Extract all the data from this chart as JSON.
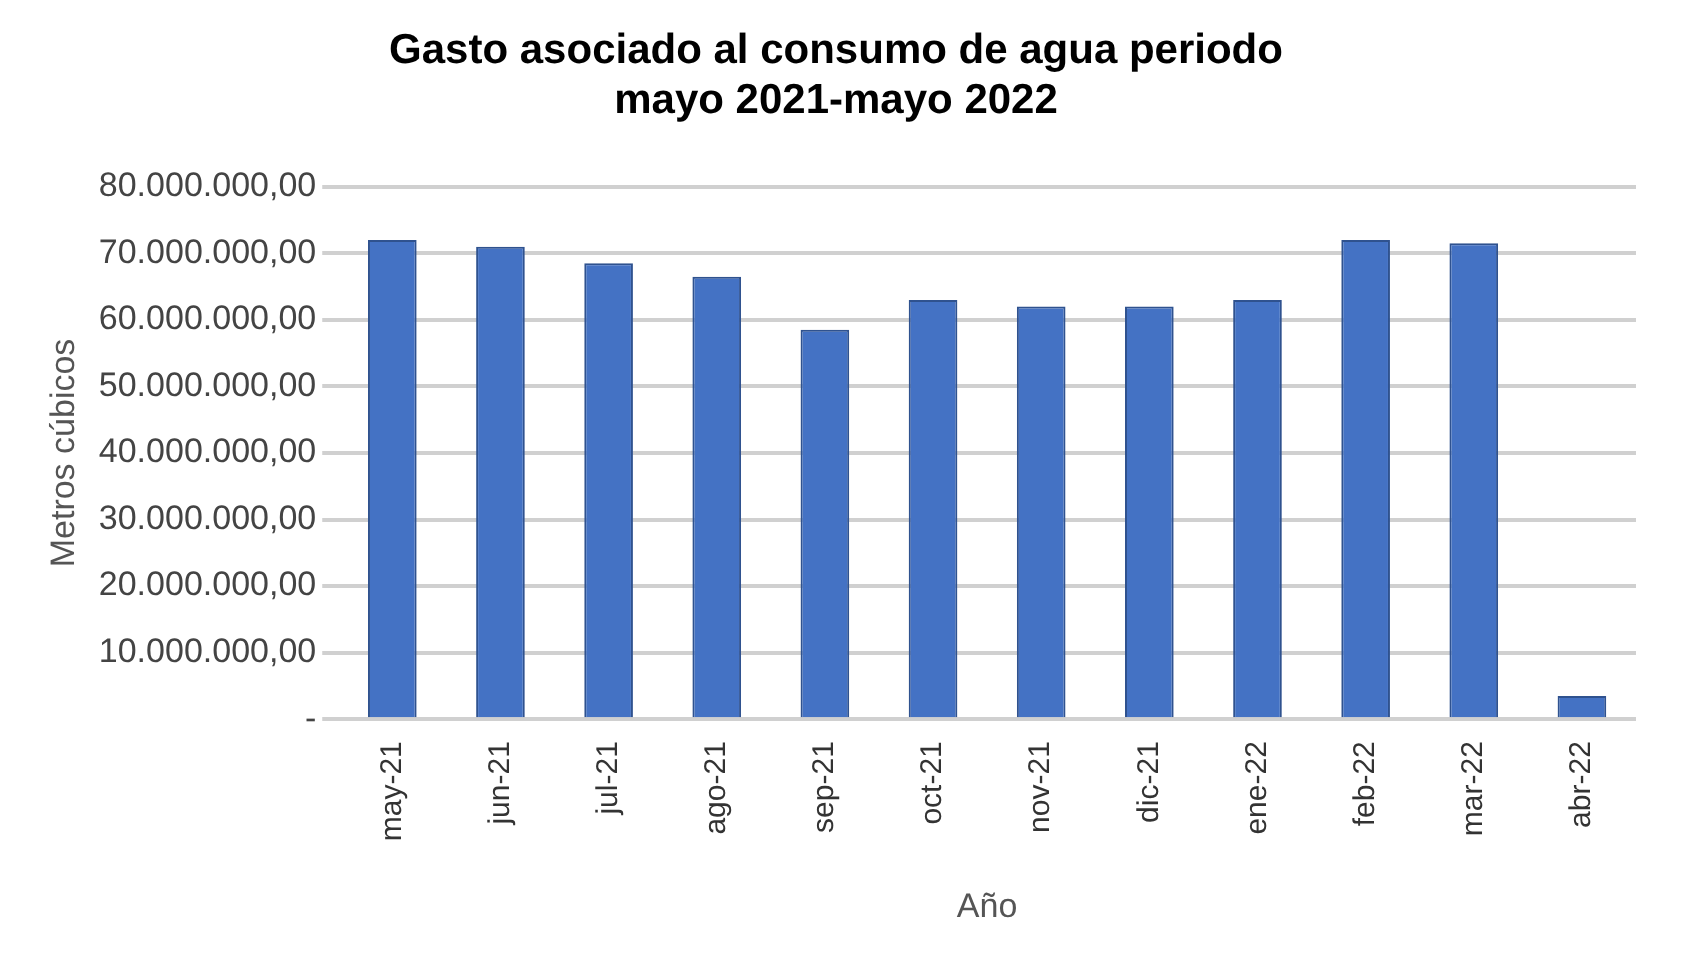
{
  "chart_data": {
    "type": "bar",
    "title": "Gasto asociado al consumo de agua periodo\nmayo 2021-mayo 2022",
    "xlabel": "Año",
    "ylabel": "Metros cúbicos",
    "categories": [
      "may-21",
      "jun-21",
      "jul-21",
      "ago-21",
      "sep-21",
      "oct-21",
      "nov-21",
      "dic-21",
      "ene-22",
      "feb-22",
      "mar-22",
      "abr-22"
    ],
    "values": [
      72000000,
      71000000,
      68500000,
      66500000,
      58500000,
      63000000,
      62000000,
      62000000,
      63000000,
      72000000,
      71500000,
      3500000
    ],
    "color": "#4472c4",
    "ylim": [
      0,
      80000000
    ],
    "yticks": [
      {
        "value": 0,
        "label": "-"
      },
      {
        "value": 10000000,
        "label": "10.000.000,00"
      },
      {
        "value": 20000000,
        "label": "20.000.000,00"
      },
      {
        "value": 30000000,
        "label": "30.000.000,00"
      },
      {
        "value": 40000000,
        "label": "40.000.000,00"
      },
      {
        "value": 50000000,
        "label": "50.000.000,00"
      },
      {
        "value": 60000000,
        "label": "60.000.000,00"
      },
      {
        "value": 70000000,
        "label": "70.000.000,00"
      },
      {
        "value": 80000000,
        "label": "80.000.000,00"
      }
    ],
    "grid": "y"
  }
}
